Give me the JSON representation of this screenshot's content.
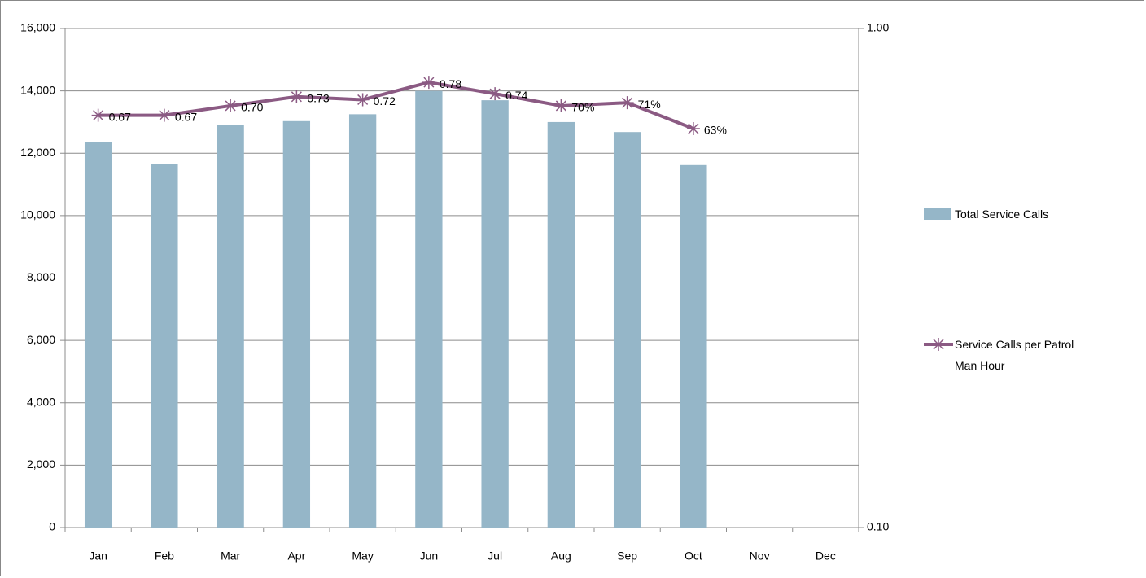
{
  "chart_data": {
    "type": "bar_line",
    "categories": [
      "Jan",
      "Feb",
      "Mar",
      "Apr",
      "May",
      "Jun",
      "Jul",
      "Aug",
      "Sep",
      "Oct",
      "Nov",
      "Dec"
    ],
    "series": [
      {
        "name": "Total Service Calls",
        "type": "bar",
        "color": "#95b6c8",
        "values": [
          12350,
          11650,
          12920,
          13030,
          13250,
          14000,
          13700,
          13000,
          12680,
          11620,
          null,
          null
        ]
      },
      {
        "name": "Service Calls per Patrol Man Hour",
        "type": "line",
        "axis": "y2",
        "color": "#8b5a83",
        "values": [
          0.67,
          0.67,
          0.7,
          0.73,
          0.72,
          0.78,
          0.74,
          0.7,
          0.71,
          0.63,
          null,
          null
        ],
        "value_labels": [
          "0.67",
          "0.67",
          "0.70",
          "0.73",
          "0.72",
          "0.78",
          "0.74",
          "70%",
          "71%",
          "63%",
          null,
          null
        ]
      }
    ],
    "ylim": [
      0,
      16000
    ],
    "yticks": [
      0,
      {
        "value": 2000,
        "label": "2,000"
      },
      {
        "value": 4000,
        "label": "4,000"
      },
      {
        "value": 6000,
        "label": "6,000"
      },
      {
        "value": 8000,
        "label": "8,000"
      },
      {
        "value": 10000,
        "label": "10,000"
      },
      {
        "value": 12000,
        "label": "12,000"
      },
      {
        "value": 14000,
        "label": "14,000"
      },
      {
        "value": 16000,
        "label": "16,000"
      }
    ],
    "y2lim": [
      0.1,
      1
    ],
    "y2ticks": [
      {
        "value": 0.1,
        "label": "0.10"
      },
      {
        "value": 1,
        "label": "1.00"
      }
    ],
    "y2log": true,
    "grid": true,
    "legend": "right"
  }
}
